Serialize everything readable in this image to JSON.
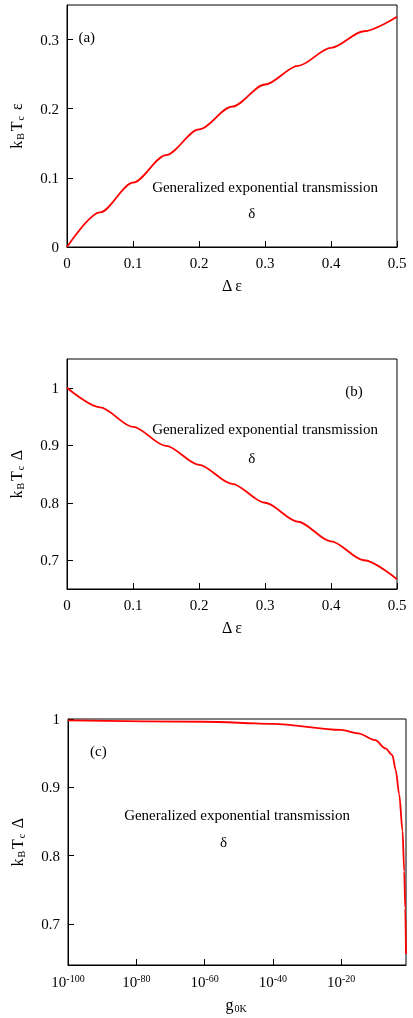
{
  "chart_data": [
    {
      "type": "line",
      "xlabel": "Δ ε",
      "ylabel": "k$_{B}$T$_{c}$ ε",
      "annotations": [
        "(a)",
        "Generalized exponential transmission",
        "δ"
      ],
      "x": [
        0,
        0.05,
        0.1,
        0.15,
        0.2,
        0.25,
        0.3,
        0.35,
        0.4,
        0.45,
        0.5
      ],
      "series": [
        {
          "color": "#ff0000",
          "values": [
            0,
            0.05,
            0.093,
            0.133,
            0.17,
            0.203,
            0.235,
            0.262,
            0.288,
            0.312,
            0.333
          ]
        }
      ],
      "xlim": [
        0,
        0.5
      ],
      "xticks": [
        0,
        0.1,
        0.2,
        0.3,
        0.4,
        0.5
      ],
      "ylim": [
        0,
        0.35
      ],
      "yticks": [
        0,
        0.1,
        0.2,
        0.3
      ],
      "grid": false,
      "marker": "none",
      "line_style": "solid"
    },
    {
      "type": "line",
      "xlabel": "Δ ε",
      "ylabel": "k$_{B}$T$_{c}$ Δ",
      "annotations": [
        "(b)",
        "Generalized exponential transmission",
        "δ"
      ],
      "x": [
        0,
        0.05,
        0.1,
        0.15,
        0.2,
        0.25,
        0.3,
        0.35,
        0.4,
        0.45,
        0.5
      ],
      "series": [
        {
          "color": "#ff0000",
          "values": [
            1,
            0.966,
            0.932,
            0.899,
            0.866,
            0.833,
            0.8,
            0.767,
            0.733,
            0.7,
            0.667
          ]
        }
      ],
      "xlim": [
        0,
        0.5
      ],
      "xticks": [
        0,
        0.1,
        0.2,
        0.3,
        0.4,
        0.5
      ],
      "ylim": [
        0.65,
        1.05
      ],
      "yticks": [
        0.7,
        0.8,
        0.9,
        1
      ],
      "grid": false,
      "marker": "none",
      "line_style": "solid"
    },
    {
      "type": "line",
      "xlabel": "g$_{0K}$",
      "ylabel": "k$_{B}$T$_{c}$ Δ",
      "annotations": [
        "(c)",
        "Generalized exponential transmission",
        "δ"
      ],
      "log": "x",
      "x": [
        1e-100,
        1e-60,
        1e-40,
        1e-20,
        1e-15,
        1e-10,
        1e-07,
        1e-05,
        0.0001,
        0.001,
        0.01,
        0.03,
        0.06,
        0.1
      ],
      "series": [
        {
          "color": "#ff0000",
          "values": [
            0.998,
            0.996,
            0.993,
            0.984,
            0.979,
            0.969,
            0.957,
            0.947,
            0.925,
            0.89,
            0.836,
            0.777,
            0.723,
            0.656
          ]
        }
      ],
      "xlim": [
        1e-100,
        0.1
      ],
      "xticks": [
        {
          "value": 1e-100,
          "label": "10$^{-100}$"
        },
        {
          "value": 1e-80,
          "label": "10$^{-80}$"
        },
        {
          "value": 1e-60,
          "label": "10$^{-60}$"
        },
        {
          "value": 1e-40,
          "label": "10$^{-40}$"
        },
        {
          "value": 1e-20,
          "label": "10$^{-20}$"
        }
      ],
      "ylim": [
        0.64,
        1
      ],
      "yticks": [
        0.7,
        0.8,
        0.9,
        1
      ],
      "grid": false,
      "marker": "none",
      "line_style": "solid"
    }
  ]
}
